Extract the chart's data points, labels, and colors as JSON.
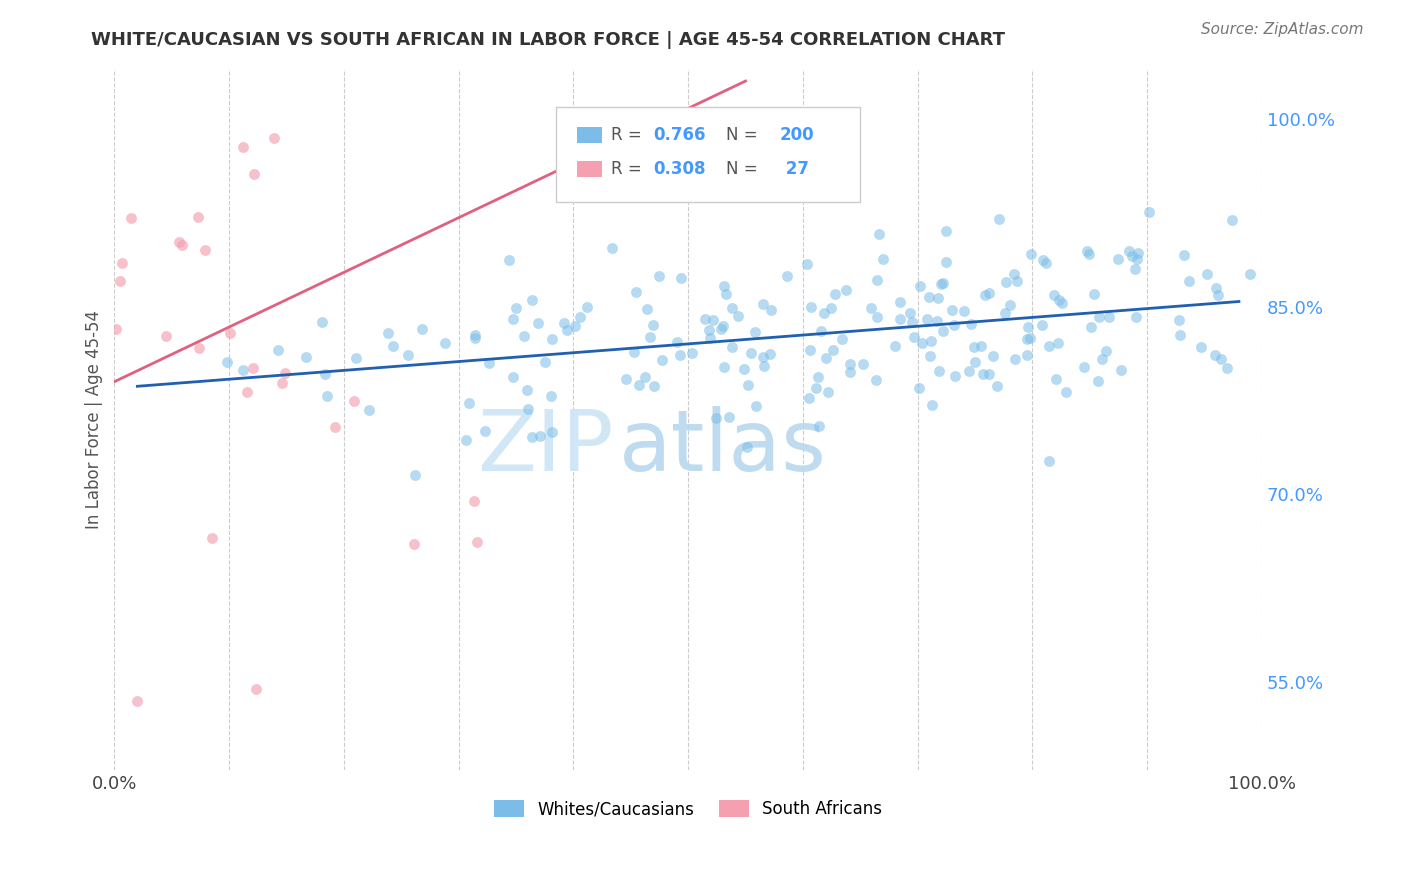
{
  "title": "WHITE/CAUCASIAN VS SOUTH AFRICAN IN LABOR FORCE | AGE 45-54 CORRELATION CHART",
  "source": "Source: ZipAtlas.com",
  "ylabel": "In Labor Force | Age 45-54",
  "watermark_zip": "ZIP",
  "watermark_atlas": "atlas",
  "blue_R": 0.766,
  "blue_N": 200,
  "pink_R": 0.308,
  "pink_N": 27,
  "blue_color": "#7bbde8",
  "pink_color": "#f4a0b0",
  "blue_line_color": "#2060b0",
  "pink_line_color": "#e06080",
  "xlim": [
    0.0,
    1.0
  ],
  "ylim": [
    0.48,
    1.04
  ],
  "right_yticks": [
    0.55,
    0.7,
    0.85,
    1.0
  ],
  "right_yticklabels": [
    "55.0%",
    "70.0%",
    "85.0%",
    "100.0%"
  ],
  "legend_label_blue": "Whites/Caucasians",
  "legend_label_pink": "South Africans",
  "blue_seed": 42,
  "pink_seed": 99
}
